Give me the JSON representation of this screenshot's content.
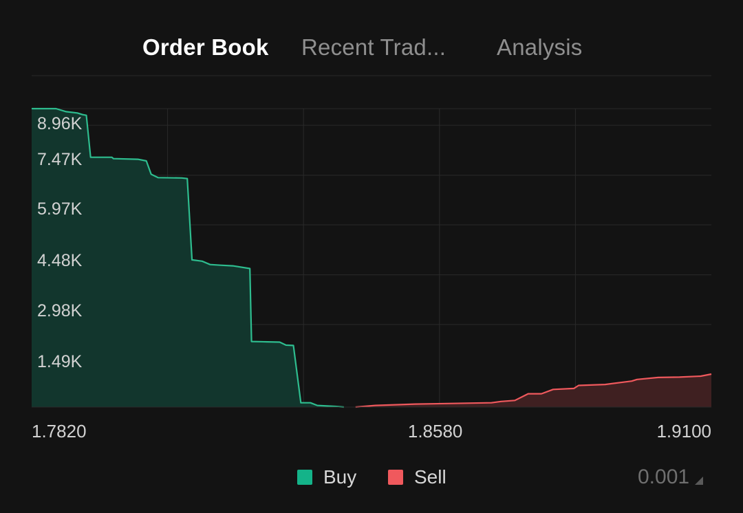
{
  "tabs": [
    {
      "label": "Order Book",
      "active": true
    },
    {
      "label": "Recent Trad...",
      "active": false
    },
    {
      "label": "Analysis",
      "active": false
    }
  ],
  "colors": {
    "background": "#131313",
    "buy_line": "#2ebd8f",
    "buy_fill": "#12362d",
    "sell_line": "#f0595d",
    "sell_fill": "#3f2021",
    "grid": "#2a2a2a",
    "label": "#d2d2d2"
  },
  "chart_data": {
    "type": "area",
    "title": "",
    "xlabel": "",
    "ylabel": "",
    "xlim": [
      1.782,
      1.91
    ],
    "ylim": [
      0,
      8960
    ],
    "x_tick_labels": [
      "1.7820",
      "1.8580",
      "1.9100"
    ],
    "x_tick_values": [
      1.782,
      1.858,
      1.91
    ],
    "y_tick_labels": [
      "1.49K",
      "2.98K",
      "4.48K",
      "5.97K",
      "7.47K",
      "8.96K"
    ],
    "y_tick_values": [
      1490,
      2980,
      4480,
      5970,
      7470,
      8960
    ],
    "grid": true,
    "series": [
      {
        "name": "Buy",
        "color": "#2ebd8f",
        "points": [
          [
            1.782,
            8960
          ],
          [
            1.7866,
            8960
          ],
          [
            1.7885,
            8870
          ],
          [
            1.7906,
            8830
          ],
          [
            1.7916,
            8780
          ],
          [
            1.7923,
            8760
          ],
          [
            1.7931,
            7500
          ],
          [
            1.7971,
            7500
          ],
          [
            1.7974,
            7460
          ],
          [
            1.802,
            7440
          ],
          [
            1.8036,
            7390
          ],
          [
            1.8045,
            6990
          ],
          [
            1.8058,
            6890
          ],
          [
            1.8103,
            6880
          ],
          [
            1.8113,
            6860
          ],
          [
            1.8122,
            4420
          ],
          [
            1.8141,
            4380
          ],
          [
            1.8156,
            4280
          ],
          [
            1.8176,
            4260
          ],
          [
            1.8199,
            4240
          ],
          [
            1.8231,
            4160
          ],
          [
            1.8234,
            1970
          ],
          [
            1.8264,
            1960
          ],
          [
            1.8287,
            1950
          ],
          [
            1.8299,
            1860
          ],
          [
            1.8313,
            1850
          ],
          [
            1.8327,
            130
          ],
          [
            1.8345,
            130
          ],
          [
            1.8358,
            50
          ],
          [
            1.8392,
            20
          ],
          [
            1.8408,
            0
          ]
        ]
      },
      {
        "name": "Sell",
        "color": "#f0595d",
        "points": [
          [
            1.843,
            0
          ],
          [
            1.8467,
            50
          ],
          [
            1.8505,
            70
          ],
          [
            1.8542,
            90
          ],
          [
            1.8612,
            110
          ],
          [
            1.8686,
            130
          ],
          [
            1.8704,
            170
          ],
          [
            1.873,
            200
          ],
          [
            1.8755,
            400
          ],
          [
            1.878,
            400
          ],
          [
            1.8802,
            530
          ],
          [
            1.8841,
            560
          ],
          [
            1.885,
            650
          ],
          [
            1.89,
            680
          ],
          [
            1.895,
            780
          ],
          [
            1.896,
            830
          ],
          [
            1.9,
            890
          ],
          [
            1.904,
            900
          ],
          [
            1.908,
            930
          ],
          [
            1.91,
            990
          ]
        ]
      }
    ],
    "legend": [
      "Buy",
      "Sell"
    ],
    "legend_position": "bottom-center"
  },
  "legend": {
    "buy": "Buy",
    "sell": "Sell"
  },
  "precision": {
    "value": "0.001",
    "icon": "corner-triangle-icon"
  }
}
